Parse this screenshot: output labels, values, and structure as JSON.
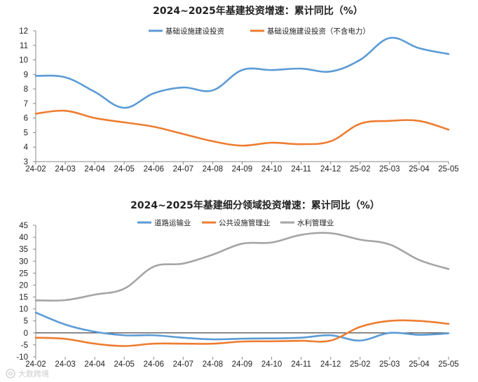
{
  "chart_data": [
    {
      "type": "line",
      "title": "2024~2025年基建投资增速：累计同比（%）",
      "categories": [
        "24-02",
        "24-03",
        "24-04",
        "24-05",
        "24-06",
        "24-07",
        "24-08",
        "24-09",
        "24-10",
        "24-11",
        "24-12",
        "25-02",
        "25-03",
        "25-04",
        "25-05"
      ],
      "ylim": [
        3,
        12
      ],
      "yticks": [
        3,
        4,
        5,
        6,
        7,
        8,
        9,
        10,
        11,
        12
      ],
      "legend_position": "top",
      "grid": false,
      "series": [
        {
          "name": "基础设施建设投资",
          "color": "#5b9bd5",
          "values": [
            8.9,
            8.8,
            7.8,
            6.7,
            7.7,
            8.1,
            7.9,
            9.3,
            9.3,
            9.4,
            9.2,
            10.0,
            11.5,
            10.8,
            10.4
          ]
        },
        {
          "name": "基础设施建设投资（不含电力）",
          "color": "#ed7d31",
          "values": [
            6.3,
            6.5,
            6.0,
            5.7,
            5.4,
            4.9,
            4.4,
            4.1,
            4.3,
            4.2,
            4.4,
            5.6,
            5.8,
            5.8,
            5.2
          ]
        }
      ]
    },
    {
      "type": "line",
      "title": "2024~2025年基建细分领域投资增速：累计同比（%）",
      "categories": [
        "24-02",
        "24-03",
        "24-04",
        "24-05",
        "24-06",
        "24-07",
        "24-08",
        "24-09",
        "24-10",
        "24-11",
        "24-12",
        "25-02",
        "25-03",
        "25-04",
        "25-05"
      ],
      "ylim": [
        -10,
        45
      ],
      "yticks": [
        -10,
        -5,
        0,
        5,
        10,
        15,
        20,
        25,
        30,
        35,
        40,
        45
      ],
      "legend_position": "top",
      "grid": false,
      "zero_line": true,
      "series": [
        {
          "name": "道路运输业",
          "color": "#5b9bd5",
          "values": [
            8.5,
            3.5,
            0.5,
            -1.0,
            -1.0,
            -2.0,
            -2.7,
            -2.4,
            -2.3,
            -2.0,
            -1.0,
            -3.2,
            0.0,
            -0.8,
            -0.2
          ]
        },
        {
          "name": "公共设施管理业",
          "color": "#ed7d31",
          "values": [
            -2.0,
            -2.5,
            -4.5,
            -5.5,
            -4.5,
            -4.5,
            -4.5,
            -3.6,
            -3.5,
            -3.3,
            -3.2,
            2.5,
            5.0,
            5.0,
            3.8
          ]
        },
        {
          "name": "水利管理业",
          "color": "#a5a5a5",
          "values": [
            13.6,
            13.7,
            16.0,
            18.5,
            27.7,
            29.0,
            32.7,
            37.3,
            37.8,
            41.0,
            41.7,
            39.0,
            37.0,
            30.5,
            26.7
          ]
        }
      ]
    }
  ],
  "watermark": "大数跨境",
  "watermark_icon": "brand-logo-icon"
}
